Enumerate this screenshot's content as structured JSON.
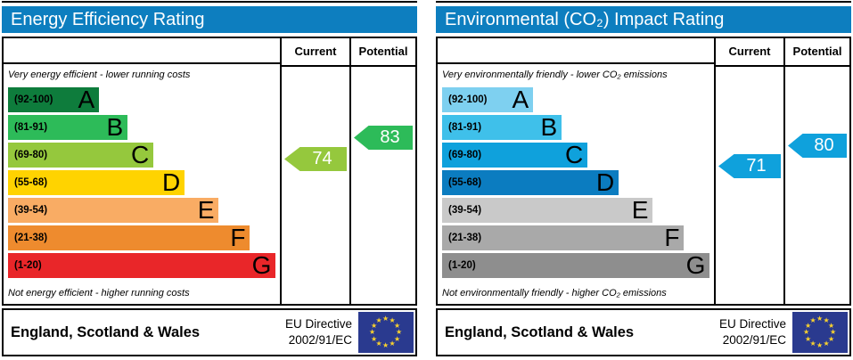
{
  "columns": {
    "current": "Current",
    "potential": "Potential"
  },
  "footer": {
    "region": "England, Scotland & Wales",
    "directive_line1": "EU Directive",
    "directive_line2": "2002/91/EC"
  },
  "colors": {
    "header_bg": "#0d7ebf",
    "flag_bg": "#2a3a8f",
    "flag_star": "#f8d12e"
  },
  "chart_data": [
    {
      "type": "bar",
      "title": "Energy Efficiency Rating",
      "top_caption": "Very energy efficient - lower running costs",
      "bottom_caption": "Not energy efficient - higher running costs",
      "ylim": [
        1,
        100
      ],
      "bands": [
        {
          "letter": "A",
          "range_label": "(92-100)",
          "min": 92,
          "max": 100,
          "color": "#0e7c3c",
          "width_pct": 33.5
        },
        {
          "letter": "B",
          "range_label": "(81-91)",
          "min": 81,
          "max": 91,
          "color": "#2dbb59",
          "width_pct": 44
        },
        {
          "letter": "C",
          "range_label": "(69-80)",
          "min": 69,
          "max": 80,
          "color": "#95c83d",
          "width_pct": 53.5
        },
        {
          "letter": "D",
          "range_label": "(55-68)",
          "min": 55,
          "max": 68,
          "color": "#ffd300",
          "width_pct": 65
        },
        {
          "letter": "E",
          "range_label": "(39-54)",
          "min": 39,
          "max": 54,
          "color": "#f9ac64",
          "width_pct": 77.5
        },
        {
          "letter": "F",
          "range_label": "(21-38)",
          "min": 21,
          "max": 38,
          "color": "#ee8b2e",
          "width_pct": 89
        },
        {
          "letter": "G",
          "range_label": "(1-20)",
          "min": 1,
          "max": 20,
          "color": "#e92629",
          "width_pct": 98.5
        }
      ],
      "current": {
        "value": 74,
        "color": "#95c83d"
      },
      "potential": {
        "value": 83,
        "color": "#2dbb59"
      }
    },
    {
      "type": "bar",
      "title": "Environmental (CO₂) Impact Rating",
      "top_caption": "Very environmentally friendly - lower CO₂ emissions",
      "bottom_caption": "Not environmentally friendly - higher CO₂ emissions",
      "ylim": [
        1,
        100
      ],
      "bands": [
        {
          "letter": "A",
          "range_label": "(92-100)",
          "min": 92,
          "max": 100,
          "color": "#7ed0f0",
          "width_pct": 33.5
        },
        {
          "letter": "B",
          "range_label": "(81-91)",
          "min": 81,
          "max": 91,
          "color": "#3fc0ea",
          "width_pct": 44
        },
        {
          "letter": "C",
          "range_label": "(69-80)",
          "min": 69,
          "max": 80,
          "color": "#0fa1dc",
          "width_pct": 53.5
        },
        {
          "letter": "D",
          "range_label": "(55-68)",
          "min": 55,
          "max": 68,
          "color": "#0b7cc0",
          "width_pct": 65
        },
        {
          "letter": "E",
          "range_label": "(39-54)",
          "min": 39,
          "max": 54,
          "color": "#c9c9c9",
          "width_pct": 77.5
        },
        {
          "letter": "F",
          "range_label": "(21-38)",
          "min": 21,
          "max": 38,
          "color": "#a9a9a9",
          "width_pct": 89
        },
        {
          "letter": "G",
          "range_label": "(1-20)",
          "min": 1,
          "max": 20,
          "color": "#8e8e8e",
          "width_pct": 98.5
        }
      ],
      "current": {
        "value": 71,
        "color": "#0fa1dc"
      },
      "potential": {
        "value": 80,
        "color": "#0fa1dc"
      }
    }
  ]
}
